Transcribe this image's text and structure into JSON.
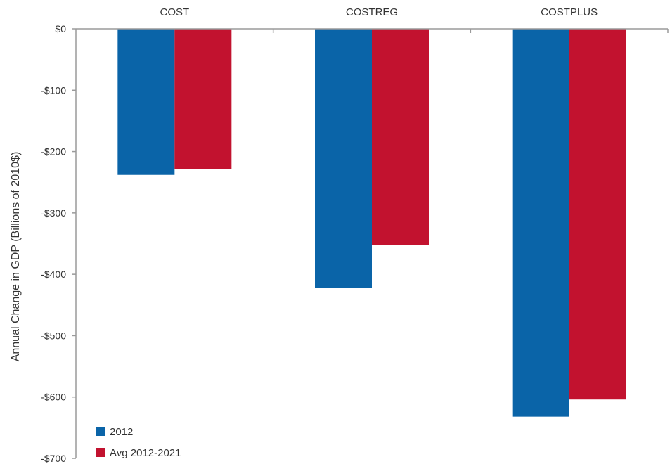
{
  "chart_data": {
    "type": "bar",
    "categories": [
      "COST",
      "COSTREG",
      "COSTPLUS"
    ],
    "series": [
      {
        "name": "2012",
        "values": [
          -238,
          -422,
          -632
        ],
        "color": "#0a64a8"
      },
      {
        "name": "Avg 2012-2021",
        "values": [
          -229,
          -352,
          -604
        ],
        "color": "#c2122f"
      }
    ],
    "ylabel": "Annual Change in GDP (Billions of 2010$)",
    "ylim": [
      -700,
      0
    ],
    "yticks": [
      0,
      -100,
      -200,
      -300,
      -400,
      -500,
      -600,
      -700
    ],
    "ytick_labels": [
      "$0",
      "-$100",
      "-$200",
      "-$300",
      "-$400",
      "-$500",
      "-$600",
      "-$700"
    ],
    "category_labels_position": "top",
    "grid": false,
    "legend": "bottom-left"
  }
}
